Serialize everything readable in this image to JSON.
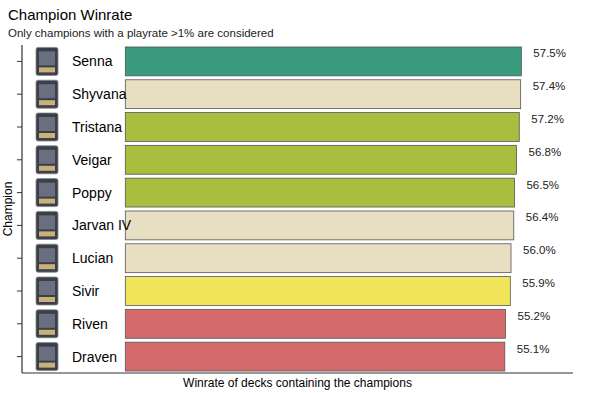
{
  "chart_data": {
    "type": "bar",
    "orientation": "horizontal",
    "title": "Champion Winrate",
    "subtitle": "Only champions with a playrate >1% are considered",
    "x_label": "Winrate of decks containing the champions",
    "y_label": "Champion",
    "categories": [
      "Senna",
      "Shyvana",
      "Tristana",
      "Veigar",
      "Poppy",
      "Jarvan IV",
      "Lucian",
      "Sivir",
      "Riven",
      "Draven"
    ],
    "values": [
      57.5,
      57.4,
      57.2,
      56.8,
      56.5,
      56.4,
      56.0,
      55.9,
      55.2,
      55.1
    ],
    "value_labels": [
      "57.5%",
      "57.4%",
      "57.2%",
      "56.8%",
      "56.5%",
      "56.4%",
      "56.0%",
      "55.9%",
      "55.2%",
      "55.1%"
    ],
    "colors": [
      "#3a9a7e",
      "#e8dfc3",
      "#a9bd3f",
      "#a9bd3f",
      "#a9bd3f",
      "#e8dfc3",
      "#e8dfc3",
      "#f0e45a",
      "#d46a6a",
      "#d46a6a"
    ],
    "xlim": [
      -15,
      65
    ],
    "data_labels": true,
    "tick_labels": "y",
    "grid": false
  }
}
